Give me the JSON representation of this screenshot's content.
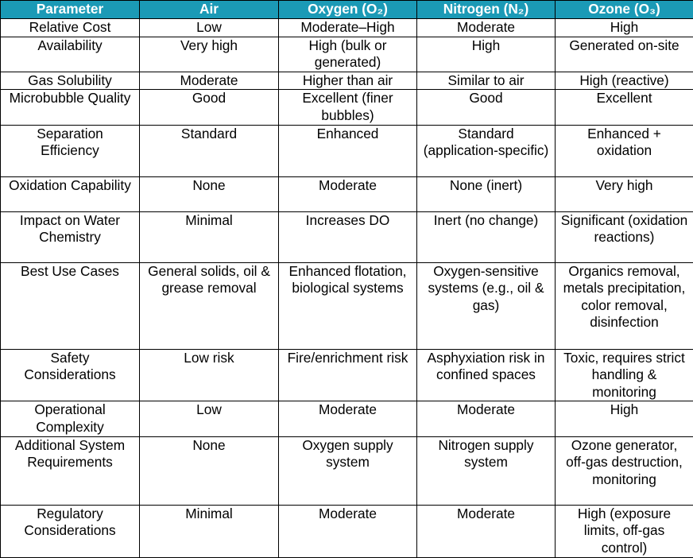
{
  "table": {
    "header": [
      "Parameter",
      "Air",
      "Oxygen (O₂)",
      "Nitrogen (N₂)",
      "Ozone (O₃)"
    ],
    "rows": [
      [
        "Relative Cost",
        "Low",
        "Moderate–High",
        "Moderate",
        "High"
      ],
      [
        "Availability",
        "Very high",
        "High (bulk or generated)",
        "High",
        "Generated on-site"
      ],
      [
        "Gas Solubility",
        "Moderate",
        "Higher than air",
        "Similar to air",
        "High (reactive)"
      ],
      [
        "Microbubble Quality",
        "Good",
        "Excellent (finer bubbles)",
        "Good",
        "Excellent"
      ],
      [
        "Separation Efficiency",
        "Standard",
        "Enhanced",
        "Standard (application-specific)",
        "Enhanced + oxidation"
      ],
      [
        "Oxidation Capability",
        "None",
        "Moderate",
        "None (inert)",
        "Very high"
      ],
      [
        "Impact on Water Chemistry",
        "Minimal",
        "Increases DO",
        "Inert (no change)",
        "Significant (oxidation reactions)"
      ],
      [
        "Best Use Cases",
        "General solids, oil & grease removal",
        "Enhanced flotation, biological systems",
        "Oxygen-sensitive systems (e.g., oil & gas)",
        "Organics removal, metals precipitation, color removal, disinfection"
      ],
      [
        "Safety Considerations",
        "Low risk",
        "Fire/enrichment risk",
        "Asphyxiation risk in confined spaces",
        "Toxic, requires strict handling & monitoring"
      ],
      [
        "Operational Complexity",
        "Low",
        "Moderate",
        "Moderate",
        "High"
      ],
      [
        "Additional System Requirements",
        "None",
        "Oxygen supply system",
        "Nitrogen supply system",
        "Ozone generator, off-gas destruction, monitoring"
      ],
      [
        "Regulatory Considerations",
        "Minimal",
        "Moderate",
        "Moderate",
        "High (exposure limits, off-gas control)"
      ]
    ]
  }
}
